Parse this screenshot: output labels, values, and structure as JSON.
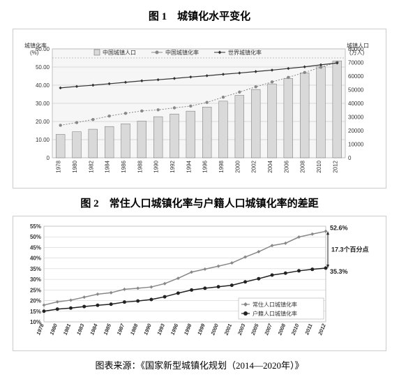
{
  "figure1": {
    "title": "图 1　城镇化水平变化",
    "type": "combo-bar-line",
    "left_axis_label": "城镇化率\n(%)",
    "right_axis_label": "城镇人口\n(万人)",
    "legend": [
      "中国城镇人口",
      "中国城镇化率",
      "世界城镇化率"
    ],
    "years": [
      "1978",
      "1980",
      "1982",
      "1984",
      "1986",
      "1988",
      "1990",
      "1992",
      "1994",
      "1996",
      "1998",
      "2000",
      "2002",
      "2004",
      "2006",
      "2008",
      "2010",
      "2012"
    ],
    "left_ylim": [
      0,
      60
    ],
    "left_ticks": [
      0,
      "10.00",
      "20.00",
      "30.00",
      "40.00",
      "50.00",
      "60.00"
    ],
    "right_ylim": [
      0,
      80000
    ],
    "right_ticks": [
      0,
      10000,
      20000,
      30000,
      40000,
      50000,
      60000,
      70000,
      80000
    ],
    "china_urban_pop": [
      17200,
      19100,
      21000,
      23000,
      25000,
      27000,
      30200,
      32200,
      34300,
      37300,
      41600,
      45900,
      50200,
      54300,
      58300,
      62400,
      67000,
      71200
    ],
    "china_rate": [
      17.9,
      19.4,
      21.1,
      23.0,
      24.5,
      25.8,
      26.4,
      27.5,
      28.5,
      30.5,
      33.4,
      36.2,
      39.1,
      41.8,
      44.3,
      47.0,
      49.9,
      52.6
    ],
    "world_rate": [
      38.5,
      39.3,
      40.0,
      40.8,
      41.6,
      42.4,
      43.0,
      43.7,
      44.5,
      45.2,
      46.0,
      46.7,
      47.5,
      48.3,
      49.2,
      50.1,
      51.2,
      52.2
    ],
    "bar_color": "#d9d9d9",
    "bar_stroke": "#555555",
    "china_line_color": "#888888",
    "world_line_color": "#333333",
    "grid_color": "#bababa",
    "dotted_top_color": "#aaaaaa",
    "background": "#f6f6f6",
    "axis_fontsize": 8,
    "legend_fontsize": 8,
    "marker_size": 2.2
  },
  "figure2": {
    "title": "图 2　常住人口城镇化率与户籍人口城镇化率的差距",
    "type": "line",
    "legend_items": [
      {
        "label": "常住人口城镇化率",
        "color": "#888888",
        "marker": "diamond"
      },
      {
        "label": "户籍人口城镇化率",
        "color": "#222222",
        "marker": "circle"
      }
    ],
    "years": [
      "1978",
      "1980",
      "1981",
      "1983",
      "1984",
      "1985",
      "1987",
      "1988",
      "1990",
      "1993",
      "1996",
      "1998",
      "1999",
      "2000",
      "2001",
      "2003",
      "2005",
      "2007",
      "2008",
      "2010",
      "2011",
      "2012"
    ],
    "resident_rate": [
      17.9,
      19.4,
      20.2,
      21.6,
      23.0,
      23.7,
      25.3,
      25.8,
      26.4,
      28.0,
      30.5,
      33.4,
      34.8,
      36.2,
      37.7,
      40.5,
      43.0,
      45.9,
      47.0,
      49.9,
      51.3,
      52.6
    ],
    "huji_rate": [
      15.0,
      16.0,
      16.5,
      17.2,
      17.8,
      18.3,
      19.3,
      19.8,
      20.5,
      21.8,
      23.5,
      25.0,
      25.8,
      26.5,
      27.2,
      28.8,
      30.3,
      32.0,
      32.9,
      34.0,
      34.7,
      35.3
    ],
    "ylim": [
      10,
      55
    ],
    "yticks": [
      "10%",
      "15%",
      "20%",
      "25%",
      "30%",
      "35%",
      "40%",
      "45%",
      "50%",
      "55%"
    ],
    "annotations": {
      "top_value": "52.6%",
      "gap_label": "17.3个百分点",
      "bottom_value": "35.3%"
    },
    "grid_color": "#c8c8c8",
    "background": "#ffffff",
    "axis_fontsize": 8,
    "marker_size": 2.5
  },
  "source": "图表来源：《国家新型城镇化规划（2014—2020年）》"
}
